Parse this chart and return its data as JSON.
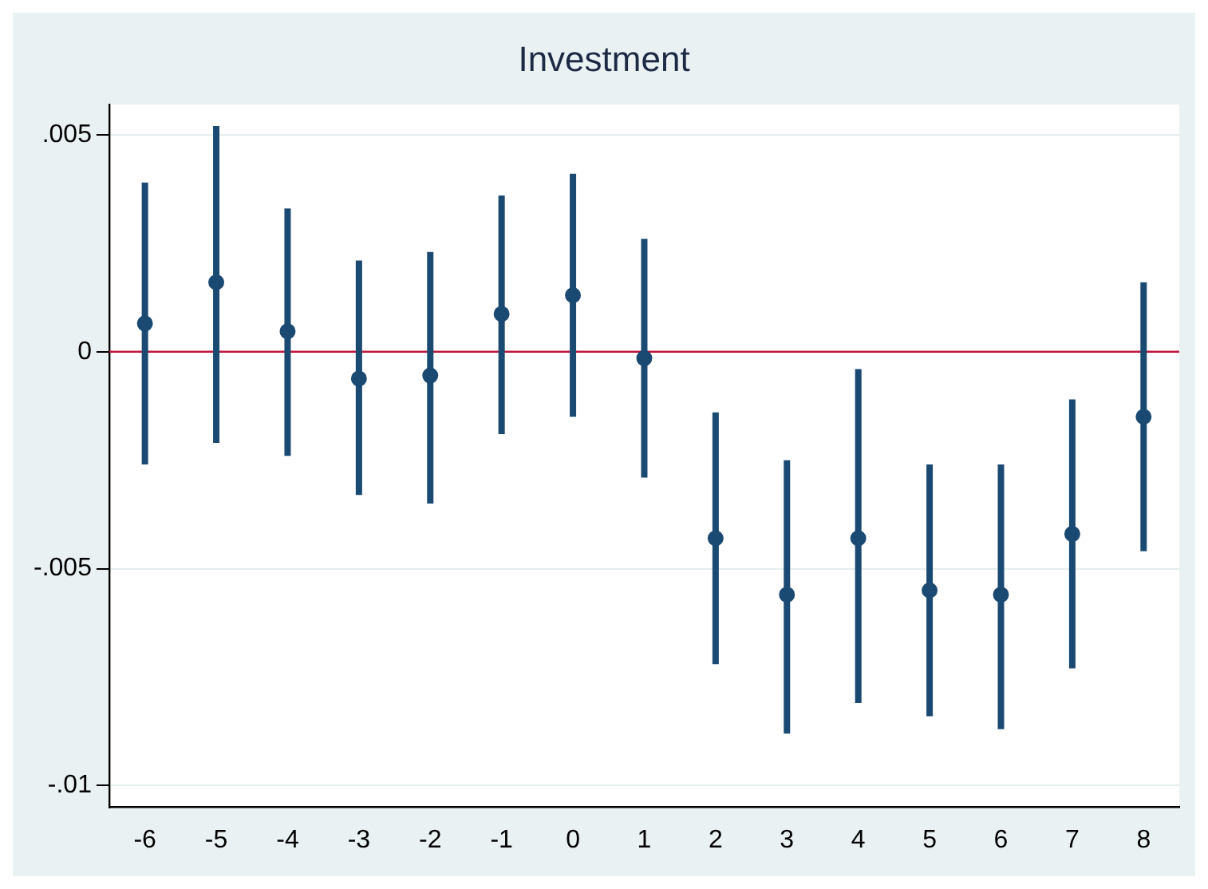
{
  "chart_data": {
    "type": "scatter",
    "title": "Investment",
    "x": [
      -6,
      -5,
      -4,
      -3,
      -2,
      -1,
      0,
      1,
      2,
      3,
      4,
      5,
      6,
      7,
      8
    ],
    "series": [
      {
        "color": "#1a4a72",
        "values": [
          0.00065,
          0.0016,
          0.00047,
          -0.00062,
          -0.00055,
          0.00087,
          0.0013,
          -0.00015,
          -0.0043,
          -0.0056,
          -0.0043,
          -0.0055,
          -0.0056,
          -0.0042,
          -0.0015
        ],
        "errors": [
          [
            -0.0026,
            0.0039
          ],
          [
            -0.0021,
            0.0052
          ],
          [
            -0.0024,
            0.0033
          ],
          [
            -0.0033,
            0.0021
          ],
          [
            -0.0035,
            0.0023
          ],
          [
            -0.0019,
            0.0036
          ],
          [
            -0.0015,
            0.0041
          ],
          [
            -0.0029,
            0.0026
          ],
          [
            -0.0072,
            -0.0014
          ],
          [
            -0.0088,
            -0.0025
          ],
          [
            -0.0081,
            -0.0004
          ],
          [
            -0.0084,
            -0.0026
          ],
          [
            -0.0087,
            -0.0026
          ],
          [
            -0.0073,
            -0.0011
          ],
          [
            -0.0046,
            0.0016
          ]
        ]
      }
    ],
    "xlim": [
      -6.5,
      8.5
    ],
    "xticks": [
      -6,
      -5,
      -4,
      -3,
      -2,
      -1,
      0,
      1,
      2,
      3,
      4,
      5,
      6,
      7,
      8
    ],
    "ylim": [
      -0.0105,
      0.0057
    ],
    "yticks": [
      {
        "value": -0.01,
        "label": "-.01"
      },
      {
        "value": -0.005,
        "label": "-.005"
      },
      {
        "value": 0,
        "label": "0"
      },
      {
        "value": 0.005,
        "label": ".005"
      }
    ],
    "ref_lines": [
      {
        "axis": "y",
        "value": 0,
        "color": "#c0143c"
      }
    ],
    "grid": "y",
    "legend": false,
    "marker": "circle"
  }
}
